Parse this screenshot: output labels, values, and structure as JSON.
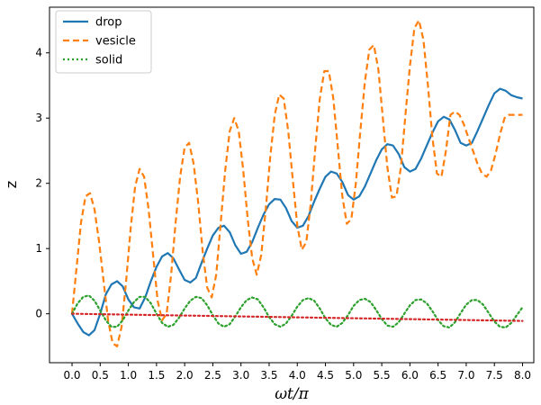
{
  "chart_data": {
    "type": "line",
    "title": "",
    "xlabel": "ωt/π",
    "ylabel": "z",
    "xlim": [
      -0.4,
      8.2
    ],
    "ylim": [
      -0.75,
      4.7
    ],
    "xticks": [
      "0.0",
      "0.5",
      "1.0",
      "1.5",
      "2.0",
      "2.5",
      "3.0",
      "3.5",
      "4.0",
      "4.5",
      "5.0",
      "5.5",
      "6.0",
      "6.5",
      "7.0",
      "7.5",
      "8.0"
    ],
    "yticks": [
      "0",
      "1",
      "2",
      "3",
      "4"
    ],
    "grid": false,
    "legend_position": "top-left",
    "series": [
      {
        "name": "drop",
        "color": "#1f77b4",
        "style": "solid",
        "x": [
          0.0,
          0.1,
          0.2,
          0.3,
          0.4,
          0.5,
          0.6,
          0.7,
          0.8,
          0.9,
          1.0,
          1.1,
          1.2,
          1.3,
          1.4,
          1.5,
          1.6,
          1.7,
          1.8,
          1.9,
          2.0,
          2.1,
          2.2,
          2.3,
          2.4,
          2.5,
          2.6,
          2.7,
          2.8,
          2.9,
          3.0,
          3.1,
          3.2,
          3.3,
          3.4,
          3.5,
          3.6,
          3.7,
          3.8,
          3.9,
          4.0,
          4.1,
          4.2,
          4.3,
          4.4,
          4.5,
          4.6,
          4.7,
          4.8,
          4.9,
          5.0,
          5.1,
          5.2,
          5.3,
          5.4,
          5.5,
          5.6,
          5.7,
          5.8,
          5.9,
          6.0,
          6.1,
          6.2,
          6.3,
          6.4,
          6.5,
          6.6,
          6.7,
          6.8,
          6.9,
          7.0,
          7.1,
          7.2,
          7.3,
          7.4,
          7.5,
          7.6,
          7.7,
          7.8,
          7.9,
          8.0
        ],
        "values": [
          0.0,
          -0.15,
          -0.28,
          -0.33,
          -0.25,
          0.0,
          0.3,
          0.45,
          0.5,
          0.42,
          0.22,
          0.1,
          0.08,
          0.25,
          0.5,
          0.72,
          0.88,
          0.93,
          0.85,
          0.68,
          0.52,
          0.48,
          0.55,
          0.78,
          1.0,
          1.2,
          1.32,
          1.35,
          1.25,
          1.05,
          0.92,
          0.95,
          1.1,
          1.32,
          1.52,
          1.68,
          1.76,
          1.75,
          1.62,
          1.42,
          1.32,
          1.35,
          1.5,
          1.72,
          1.92,
          2.1,
          2.18,
          2.15,
          2.02,
          1.82,
          1.75,
          1.8,
          1.95,
          2.15,
          2.35,
          2.52,
          2.6,
          2.58,
          2.45,
          2.25,
          2.18,
          2.22,
          2.38,
          2.58,
          2.78,
          2.95,
          3.02,
          2.98,
          2.82,
          2.62,
          2.58,
          2.62,
          2.8,
          3.0,
          3.2,
          3.38,
          3.45,
          3.42,
          3.35,
          3.32,
          3.3
        ]
      },
      {
        "name": "vesicle",
        "color": "#ff7f0e",
        "style": "dashed",
        "x": [
          0.0,
          0.08,
          0.16,
          0.24,
          0.32,
          0.4,
          0.48,
          0.56,
          0.64,
          0.72,
          0.8,
          0.88,
          0.96,
          1.04,
          1.12,
          1.2,
          1.28,
          1.36,
          1.44,
          1.52,
          1.6,
          1.68,
          1.76,
          1.84,
          1.92,
          2.0,
          2.08,
          2.16,
          2.24,
          2.32,
          2.4,
          2.48,
          2.56,
          2.64,
          2.72,
          2.8,
          2.88,
          2.96,
          3.04,
          3.12,
          3.2,
          3.28,
          3.36,
          3.44,
          3.52,
          3.6,
          3.68,
          3.76,
          3.84,
          3.92,
          4.0,
          4.08,
          4.16,
          4.24,
          4.32,
          4.4,
          4.48,
          4.56,
          4.64,
          4.72,
          4.8,
          4.88,
          4.96,
          5.04,
          5.12,
          5.2,
          5.28,
          5.36,
          5.44,
          5.52,
          5.6,
          5.68,
          5.76,
          5.84,
          5.92,
          6.0,
          6.08,
          6.16,
          6.24,
          6.32,
          6.4,
          6.48,
          6.56,
          6.64,
          6.72,
          6.8,
          6.88,
          6.96,
          7.04,
          7.12,
          7.2,
          7.28,
          7.36,
          7.44,
          7.52,
          7.6,
          7.68,
          7.76,
          7.84,
          7.92,
          8.0
        ],
        "values": [
          0.0,
          0.7,
          1.4,
          1.8,
          1.85,
          1.6,
          1.1,
          0.5,
          -0.1,
          -0.45,
          -0.5,
          -0.2,
          0.5,
          1.3,
          1.95,
          2.22,
          2.1,
          1.6,
          0.9,
          0.2,
          -0.1,
          0.0,
          0.6,
          1.4,
          2.1,
          2.55,
          2.62,
          2.3,
          1.7,
          0.95,
          0.4,
          0.25,
          0.6,
          1.4,
          2.2,
          2.8,
          3.0,
          2.8,
          2.2,
          1.45,
          0.85,
          0.6,
          0.9,
          1.6,
          2.4,
          3.05,
          3.36,
          3.3,
          2.8,
          2.05,
          1.35,
          0.98,
          1.1,
          1.7,
          2.55,
          3.3,
          3.72,
          3.72,
          3.3,
          2.55,
          1.8,
          1.38,
          1.45,
          2.0,
          2.8,
          3.55,
          4.05,
          4.12,
          3.75,
          3.0,
          2.25,
          1.78,
          1.8,
          2.25,
          3.05,
          3.8,
          4.38,
          4.5,
          4.2,
          3.5,
          2.7,
          2.15,
          2.1,
          2.5,
          3.05,
          3.1,
          3.05,
          2.9,
          2.7,
          2.5,
          2.3,
          2.15,
          2.1,
          2.2,
          2.45,
          2.75,
          3.0,
          3.05,
          3.05,
          3.05,
          3.05
        ]
      },
      {
        "name": "solid",
        "color": "#2ca02c",
        "style": "dotted",
        "x": [
          0.0,
          0.1,
          0.2,
          0.3,
          0.4,
          0.5,
          0.6,
          0.7,
          0.8,
          0.9,
          1.0,
          1.1,
          1.2,
          1.3,
          1.4,
          1.5,
          1.6,
          1.7,
          1.8,
          1.9,
          2.0,
          2.1,
          2.2,
          2.3,
          2.4,
          2.5,
          2.6,
          2.7,
          2.8,
          2.9,
          3.0,
          3.1,
          3.2,
          3.3,
          3.4,
          3.5,
          3.6,
          3.7,
          3.8,
          3.9,
          4.0,
          4.1,
          4.2,
          4.3,
          4.4,
          4.5,
          4.6,
          4.7,
          4.8,
          4.9,
          5.0,
          5.1,
          5.2,
          5.3,
          5.4,
          5.5,
          5.6,
          5.7,
          5.8,
          5.9,
          6.0,
          6.1,
          6.2,
          6.3,
          6.4,
          6.5,
          6.6,
          6.7,
          6.8,
          6.9,
          7.0,
          7.1,
          7.2,
          7.3,
          7.4,
          7.5,
          7.6,
          7.7,
          7.8,
          7.9,
          8.0
        ],
        "values": [
          0.0,
          0.16,
          0.26,
          0.28,
          0.2,
          0.05,
          -0.1,
          -0.2,
          -0.2,
          -0.1,
          0.05,
          0.18,
          0.26,
          0.26,
          0.16,
          0.0,
          -0.14,
          -0.2,
          -0.17,
          -0.06,
          0.08,
          0.2,
          0.26,
          0.24,
          0.13,
          -0.02,
          -0.15,
          -0.2,
          -0.16,
          -0.04,
          0.1,
          0.21,
          0.25,
          0.22,
          0.1,
          -0.05,
          -0.16,
          -0.2,
          -0.15,
          -0.03,
          0.11,
          0.21,
          0.24,
          0.2,
          0.08,
          -0.07,
          -0.17,
          -0.2,
          -0.14,
          -0.02,
          0.12,
          0.21,
          0.23,
          0.18,
          0.06,
          -0.08,
          -0.18,
          -0.2,
          -0.13,
          0.0,
          0.13,
          0.21,
          0.22,
          0.16,
          0.04,
          -0.1,
          -0.19,
          -0.21,
          -0.13,
          0.01,
          0.14,
          0.21,
          0.21,
          0.14,
          0.01,
          -0.12,
          -0.2,
          -0.21,
          -0.14,
          -0.02,
          0.1
        ]
      },
      {
        "name": "",
        "color": "#d62728",
        "style": "dotted",
        "x": [
          0.0,
          8.0
        ],
        "values": [
          0.0,
          -0.11
        ]
      }
    ]
  }
}
